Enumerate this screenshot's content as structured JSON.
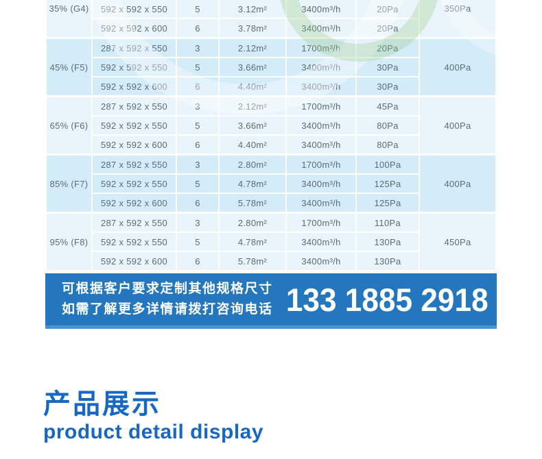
{
  "table": {
    "groups": [
      {
        "efficiency": "35% (G4)",
        "final_resistance": "350Pa",
        "rows": [
          {
            "size": "592 x 592 x 550",
            "quantity": "5",
            "area": "3.12m²",
            "airflow": "3400m³/h",
            "initial_resistance": "20Pa"
          },
          {
            "size": "592 x 592 x 600",
            "quantity": "6",
            "area": "3.78m²",
            "airflow": "3400m³/h",
            "initial_resistance": "20Pa"
          }
        ]
      },
      {
        "efficiency": "45% (F5)",
        "final_resistance": "400Pa",
        "rows": [
          {
            "size": "287 x 592 x 550",
            "quantity": "3",
            "area": "2.12m²",
            "airflow": "1700m³/h",
            "initial_resistance": "20Pa"
          },
          {
            "size": "592 x 592 x 550",
            "quantity": "5",
            "area": "3.66m²",
            "airflow": "3400m³/h",
            "initial_resistance": "30Pa"
          },
          {
            "size": "592 x 592 x 600",
            "quantity": "6",
            "area": "4.40m²",
            "airflow": "3400m³/h",
            "initial_resistance": "30Pa"
          }
        ]
      },
      {
        "efficiency": "65% (F6)",
        "final_resistance": "400Pa",
        "rows": [
          {
            "size": "287 x 592 x 550",
            "quantity": "3",
            "area": "2.12m²",
            "airflow": "1700m³/h",
            "initial_resistance": "45Pa"
          },
          {
            "size": "592 x 592 x 550",
            "quantity": "5",
            "area": "3.66m²",
            "airflow": "3400m³/h",
            "initial_resistance": "80Pa"
          },
          {
            "size": "592 x 592 x 600",
            "quantity": "6",
            "area": "4.40m²",
            "airflow": "3400m³/h",
            "initial_resistance": "80Pa"
          }
        ]
      },
      {
        "efficiency": "85% (F7)",
        "final_resistance": "400Pa",
        "rows": [
          {
            "size": "287 x 592 x 550",
            "quantity": "3",
            "area": "2.80m²",
            "airflow": "1700m³/h",
            "initial_resistance": "100Pa"
          },
          {
            "size": "592 x 592 x 550",
            "quantity": "5",
            "area": "4.78m²",
            "airflow": "3400m³/h",
            "initial_resistance": "125Pa"
          },
          {
            "size": "592 x 592 x 600",
            "quantity": "6",
            "area": "5.78m²",
            "airflow": "3400m³/h",
            "initial_resistance": "125Pa"
          }
        ]
      },
      {
        "efficiency": "95% (F8)",
        "final_resistance": "450Pa",
        "rows": [
          {
            "size": "287 x 592 x 550",
            "quantity": "3",
            "area": "2.80m²",
            "airflow": "1700m³/h",
            "initial_resistance": "110Pa"
          },
          {
            "size": "592 x 592 x 550",
            "quantity": "5",
            "area": "4.78m²",
            "airflow": "3400m³/h",
            "initial_resistance": "130Pa"
          },
          {
            "size": "592 x 592 x 600",
            "quantity": "6",
            "area": "5.78m²",
            "airflow": "3400m³/h",
            "initial_resistance": "130Pa"
          }
        ]
      }
    ]
  },
  "banner": {
    "line1": "可根据客户要求定制其他规格尺寸",
    "line2": "如需了解更多详情请拨打咨询电话",
    "phone": "133 1885 2918"
  },
  "section_heading": {
    "title_zh": "产品展示",
    "title_en": "product detail display"
  },
  "colors": {
    "banner_blue": "#2577bd",
    "banner_blue_light": "#4b93cf",
    "heading_blue": "#1768c2",
    "group_light_bg": "#e9f5fb",
    "group_dark_bg": "#d4ecf8",
    "table_text": "#5c6b77"
  }
}
